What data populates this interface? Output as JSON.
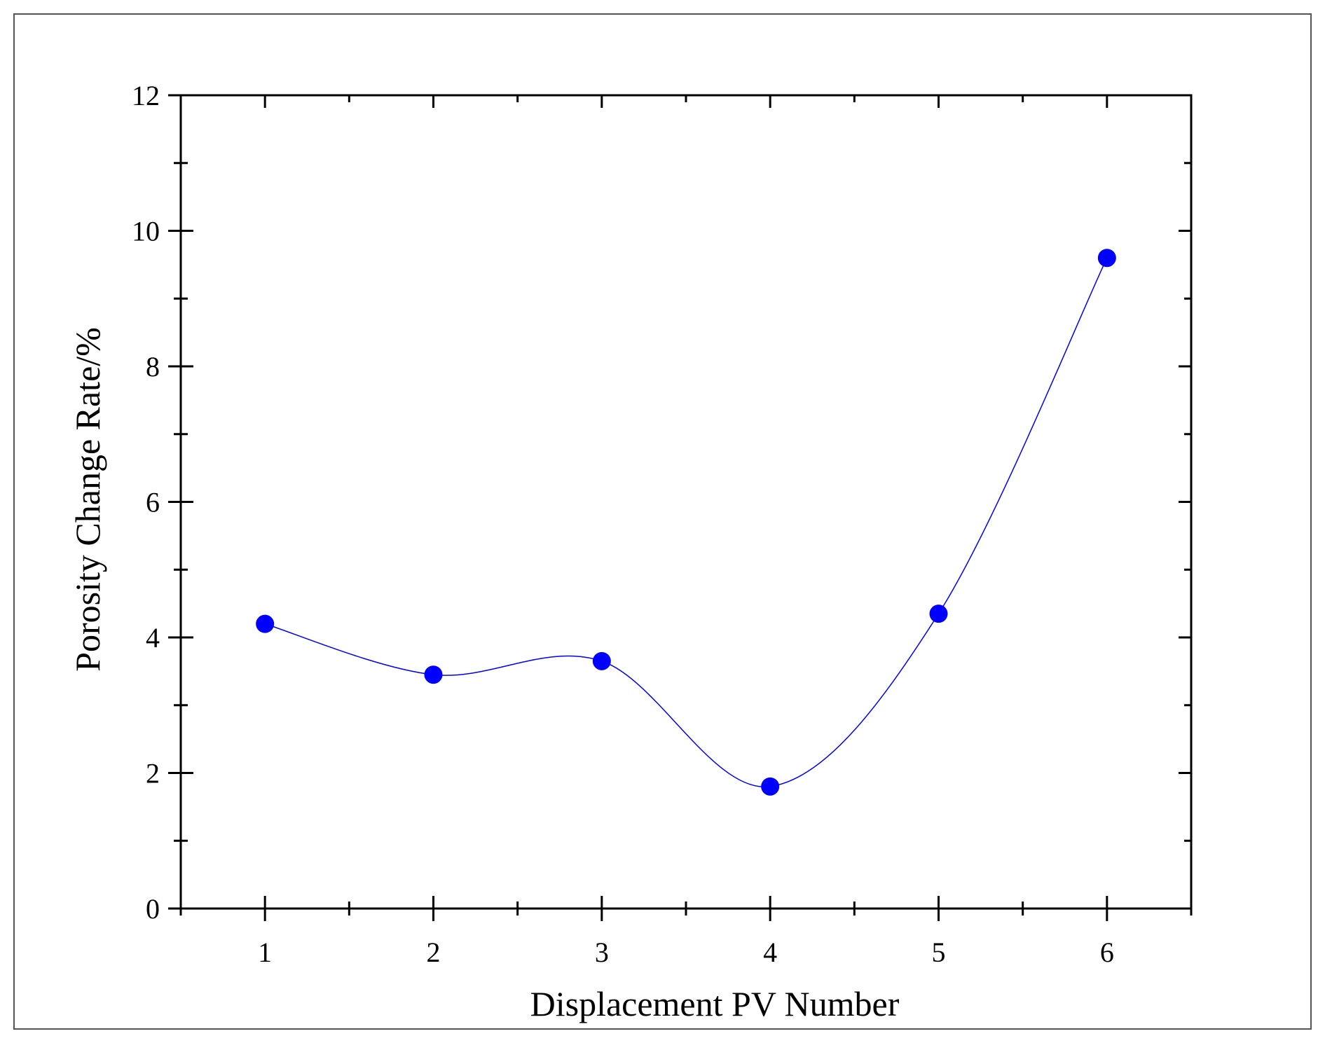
{
  "chart_data": {
    "type": "line",
    "title": "",
    "xlabel": "Displacement PV Number",
    "ylabel": "Porosity Change Rate/%",
    "x": [
      1,
      2,
      3,
      4,
      5,
      6
    ],
    "series": [
      {
        "values": [
          4.2,
          3.45,
          3.65,
          1.8,
          4.35,
          9.6
        ]
      }
    ],
    "xlim": [
      0.5,
      6.5
    ],
    "ylim": [
      0,
      12
    ],
    "xticks": [
      1,
      2,
      3,
      4,
      5,
      6
    ],
    "yticks": [
      0,
      2,
      4,
      6,
      8,
      10,
      12
    ],
    "x_tick_labels": [
      "1",
      "2",
      "3",
      "4",
      "5",
      "6"
    ],
    "y_tick_labels": [
      "0",
      "2",
      "4",
      "6",
      "8",
      "10",
      "12"
    ],
    "grid": false,
    "legend": "none",
    "line_style": "smooth spline",
    "colors": {
      "series": "#0000ff",
      "axes": "#000000",
      "frame": "#555555"
    }
  }
}
